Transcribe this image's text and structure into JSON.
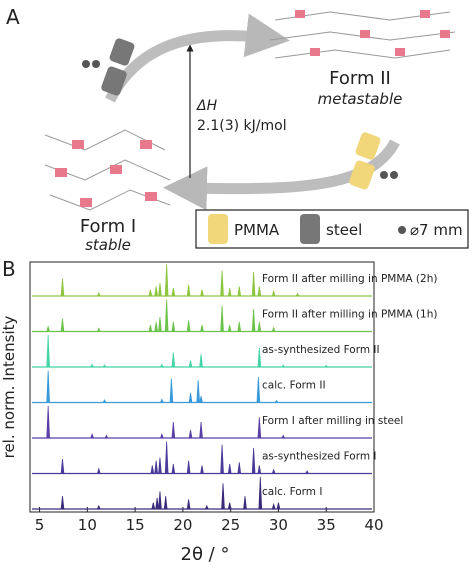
{
  "diagram": {
    "panel_a": "A",
    "form2": "Form II",
    "form2_sub": "metastable",
    "dh": "ΔH",
    "dh_value": "2.1(3) kJ/mol",
    "form1": "Form I",
    "form1_sub": "stable",
    "legend": [
      "PMMA",
      "steel",
      "⌀7 mm"
    ]
  },
  "chart_data": {
    "type": "stacked-pattern",
    "panel": "B",
    "x_label": "2θ / °",
    "y_label": "rel. norm. Intensity",
    "xlim": [
      4,
      40
    ],
    "xticks": [
      5,
      10,
      15,
      20,
      25,
      30,
      35,
      40
    ],
    "series": [
      {
        "name": "Form II after milling in PMMA (2h)",
        "color": "#8dc63f",
        "x": [
          7.4,
          11.2,
          16.6,
          17.2,
          17.6,
          18.3,
          19.0,
          20.6,
          22.0,
          24.1,
          24.9,
          25.9,
          27.4,
          28.0,
          29.5,
          32.0
        ],
        "values": [
          55,
          10,
          20,
          30,
          40,
          100,
          25,
          35,
          20,
          80,
          25,
          30,
          75,
          30,
          15,
          8
        ]
      },
      {
        "name": "Form II after milling in PMMA (1h)",
        "color": "#6cc24a",
        "x": [
          5.9,
          7.4,
          11.2,
          16.6,
          17.2,
          17.6,
          18.3,
          19.0,
          20.6,
          22.0,
          24.1,
          24.9,
          25.9,
          27.4,
          28.0,
          29.5
        ],
        "values": [
          15,
          40,
          10,
          20,
          30,
          45,
          100,
          30,
          35,
          20,
          80,
          20,
          30,
          70,
          30,
          12
        ]
      },
      {
        "name": "as-synthesized Form II",
        "color": "#45d4a8",
        "x": [
          5.9,
          10.5,
          11.8,
          17.8,
          19.0,
          20.8,
          21.9,
          28.0,
          30.5,
          35.0
        ],
        "values": [
          100,
          8,
          6,
          8,
          45,
          20,
          40,
          60,
          6,
          5
        ]
      },
      {
        "name": "calc. Form II",
        "color": "#3a9ad9",
        "x": [
          5.9,
          11.8,
          17.8,
          18.8,
          20.8,
          21.6,
          21.9,
          27.9,
          29.8
        ],
        "values": [
          100,
          8,
          10,
          75,
          30,
          70,
          20,
          80,
          6
        ]
      },
      {
        "name": "Form I after milling in steel",
        "color": "#5b3fa8",
        "x": [
          5.9,
          10.5,
          12.0,
          17.8,
          19.0,
          20.8,
          21.9,
          28.0,
          30.5
        ],
        "values": [
          100,
          12,
          8,
          12,
          50,
          25,
          50,
          65,
          8
        ]
      },
      {
        "name": "as-synthesized Form I",
        "color": "#4a3a9a",
        "x": [
          7.4,
          11.2,
          16.8,
          17.2,
          17.6,
          18.3,
          19.0,
          20.6,
          22.0,
          24.1,
          24.9,
          25.9,
          27.4,
          28.0,
          29.5,
          33.0
        ],
        "values": [
          45,
          15,
          25,
          40,
          50,
          100,
          30,
          40,
          25,
          90,
          30,
          35,
          80,
          25,
          12,
          8
        ]
      },
      {
        "name": "calc. Form I",
        "color": "#3b2a7a",
        "x": [
          7.4,
          11.2,
          16.9,
          17.3,
          17.6,
          18.2,
          20.6,
          22.5,
          24.2,
          24.9,
          26.5,
          28.1,
          29.5,
          30.0
        ],
        "values": [
          40,
          10,
          20,
          35,
          55,
          40,
          30,
          10,
          80,
          20,
          40,
          100,
          15,
          20
        ]
      }
    ]
  }
}
